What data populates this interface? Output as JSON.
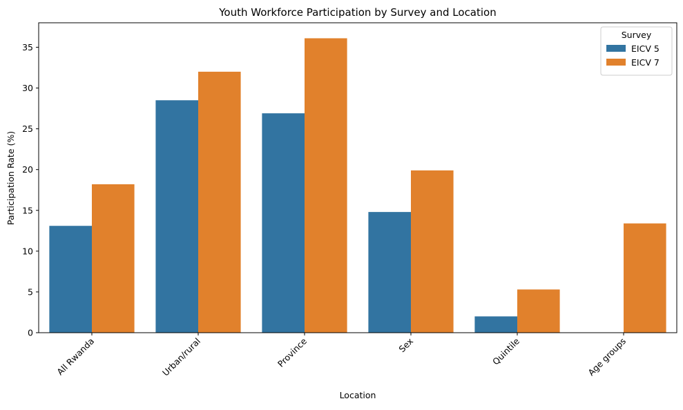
{
  "chart_data": {
    "type": "bar",
    "title": "Youth Workforce Participation by Survey and Location",
    "xlabel": "Location",
    "ylabel": "Participation Rate (%)",
    "categories": [
      "All Rwanda",
      "Urban/rural",
      "Province",
      "Sex",
      "Quintile",
      "Age groups"
    ],
    "series": [
      {
        "name": "EICV 5",
        "color": "#3274a1",
        "values": [
          13.1,
          28.5,
          26.9,
          14.8,
          2.0,
          null
        ]
      },
      {
        "name": "EICV 7",
        "color": "#e1812c",
        "values": [
          18.2,
          32.0,
          36.1,
          19.9,
          5.3,
          13.4
        ]
      }
    ],
    "ylim": [
      0,
      38
    ],
    "yticks": [
      0,
      5,
      10,
      15,
      20,
      25,
      30,
      35
    ],
    "grid": false,
    "legend": {
      "title": "Survey",
      "position": "top-right"
    }
  }
}
